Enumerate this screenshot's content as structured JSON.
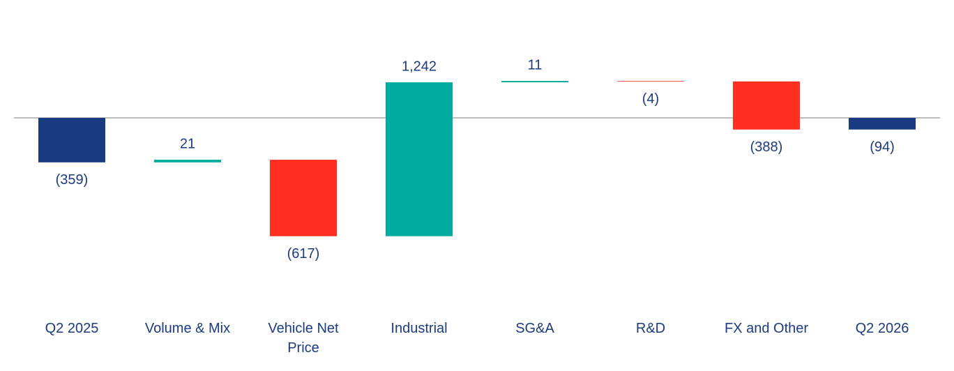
{
  "chart_data": {
    "type": "waterfall",
    "categories": [
      "Q2 2025",
      "Volume & Mix",
      "Vehicle Net Price",
      "Industrial",
      "SG&A",
      "R&D",
      "FX and Other",
      "Q2 2026"
    ],
    "values": [
      -359,
      21,
      -617,
      1242,
      11,
      -4,
      -388,
      -94
    ],
    "value_labels": [
      "(359)",
      "21",
      "(617)",
      "1,242",
      "11",
      "(4)",
      "(388)",
      "(94)"
    ],
    "colors": [
      "#1a3a82",
      "#00ab9f",
      "#ff2e1f",
      "#00ab9f",
      "#00ab9f",
      "#ff2e1f",
      "#ff2e1f",
      "#1a3a82"
    ],
    "ylim": [
      -1300,
      670
    ]
  }
}
